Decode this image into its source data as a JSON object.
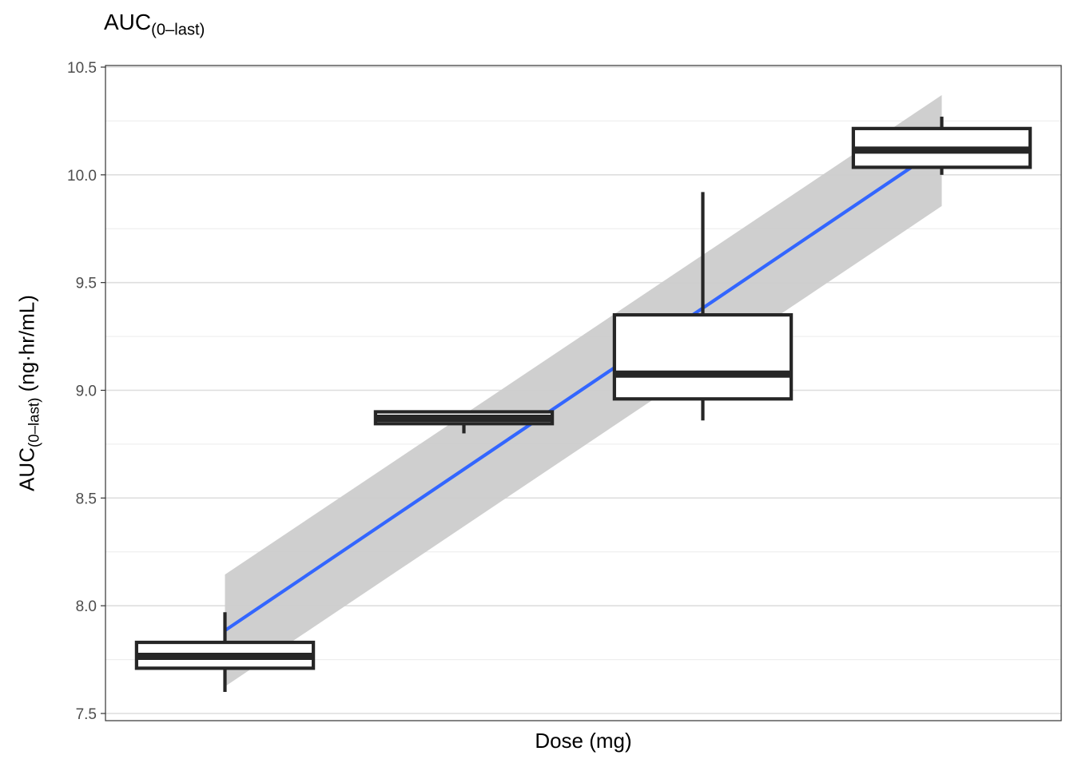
{
  "chart_data": {
    "type": "boxplot",
    "title_main": "AUC",
    "title_sub": "(0–last)",
    "xlabel": "Dose (mg)",
    "ylabel_main": "AUC",
    "ylabel_sub": "(0–last)",
    "ylabel_units": " (ng·hr/mL)",
    "ylim": [
      7.47,
      10.5
    ],
    "yticks": [
      7.5,
      8.0,
      8.5,
      9.0,
      9.5,
      10.0,
      10.5
    ],
    "ytick_labels": [
      "7.5",
      "8.0",
      "8.5",
      "9.0",
      "9.5",
      "10.0",
      "10.5"
    ],
    "grid": true,
    "xtick_labels": "none",
    "boxes": [
      {
        "q1": 7.71,
        "median": 7.765,
        "q3": 7.83,
        "whisker_low": 7.6,
        "whisker_high": 7.97
      },
      {
        "q1": 8.845,
        "median": 8.87,
        "q3": 8.9,
        "whisker_low": 8.8,
        "whisker_high": 8.9
      },
      {
        "q1": 8.96,
        "median": 9.075,
        "q3": 9.35,
        "whisker_low": 8.86,
        "whisker_high": 9.92
      },
      {
        "q1": 10.035,
        "median": 10.115,
        "q3": 10.215,
        "whisker_low": 10.0,
        "whisker_high": 10.27
      }
    ],
    "regression": {
      "line": [
        7.885,
        10.13
      ],
      "ci_lower": [
        7.625,
        9.855
      ],
      "ci_upper": [
        8.145,
        10.37
      ],
      "line_color": "#3366FF",
      "ci_color": "#CCCCCC"
    },
    "box_color": "#262626"
  }
}
